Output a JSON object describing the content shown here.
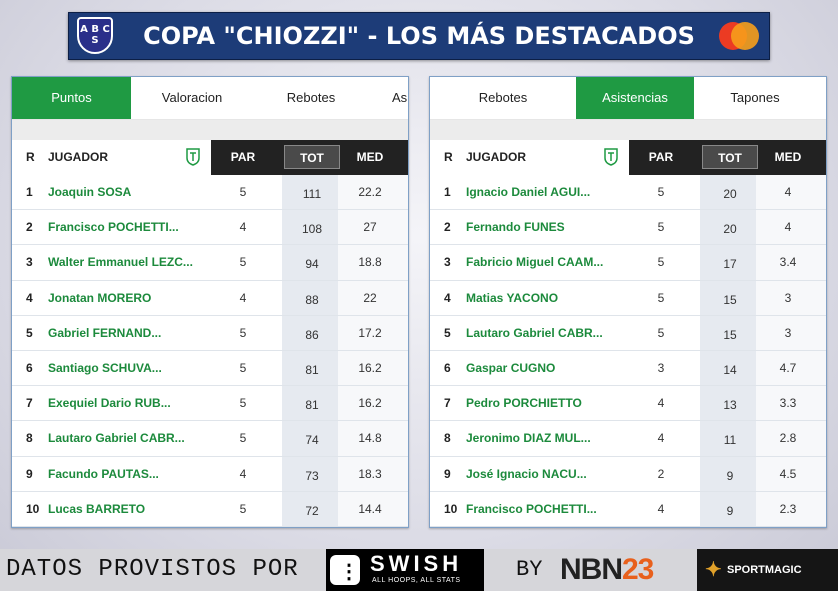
{
  "header": {
    "title": "COPA \"CHIOZZI\" - LOS MÁS DESTACADOS",
    "club_logo_text": "A B C S"
  },
  "left_panel": {
    "tabs": [
      "Puntos",
      "Valoracion",
      "Rebotes",
      "As"
    ],
    "active_tab": 0,
    "columns": {
      "rank": "R",
      "player": "JUGADOR",
      "par": "PAR",
      "tot": "TOT",
      "med": "MED"
    },
    "rows": [
      {
        "r": "1",
        "name": "Joaquin SOSA",
        "par": "5",
        "tot": "111",
        "med": "22.2"
      },
      {
        "r": "2",
        "name": "Francisco POCHETTI...",
        "par": "4",
        "tot": "108",
        "med": "27"
      },
      {
        "r": "3",
        "name": "Walter Emmanuel LEZC...",
        "par": "5",
        "tot": "94",
        "med": "18.8"
      },
      {
        "r": "4",
        "name": "Jonatan MORERO",
        "par": "4",
        "tot": "88",
        "med": "22"
      },
      {
        "r": "5",
        "name": "Gabriel FERNAND...",
        "par": "5",
        "tot": "86",
        "med": "17.2"
      },
      {
        "r": "6",
        "name": "Santiago SCHUVA...",
        "par": "5",
        "tot": "81",
        "med": "16.2"
      },
      {
        "r": "7",
        "name": "Exequiel Dario RUB...",
        "par": "5",
        "tot": "81",
        "med": "16.2"
      },
      {
        "r": "8",
        "name": "Lautaro Gabriel CABR...",
        "par": "5",
        "tot": "74",
        "med": "14.8"
      },
      {
        "r": "9",
        "name": "Facundo PAUTAS...",
        "par": "4",
        "tot": "73",
        "med": "18.3"
      },
      {
        "r": "10",
        "name": "Lucas BARRETO",
        "par": "5",
        "tot": "72",
        "med": "14.4"
      }
    ]
  },
  "right_panel": {
    "tabs": [
      "Rebotes",
      "Asistencias",
      "Tapones"
    ],
    "active_tab": 1,
    "columns": {
      "rank": "R",
      "player": "JUGADOR",
      "par": "PAR",
      "tot": "TOT",
      "med": "MED"
    },
    "rows": [
      {
        "r": "1",
        "name": "Ignacio Daniel AGUI...",
        "par": "5",
        "tot": "20",
        "med": "4"
      },
      {
        "r": "2",
        "name": "Fernando FUNES",
        "par": "5",
        "tot": "20",
        "med": "4"
      },
      {
        "r": "3",
        "name": "Fabricio Miguel CAAM...",
        "par": "5",
        "tot": "17",
        "med": "3.4"
      },
      {
        "r": "4",
        "name": "Matias YACONO",
        "par": "5",
        "tot": "15",
        "med": "3"
      },
      {
        "r": "5",
        "name": "Lautaro Gabriel CABR...",
        "par": "5",
        "tot": "15",
        "med": "3"
      },
      {
        "r": "6",
        "name": "Gaspar CUGNO",
        "par": "3",
        "tot": "14",
        "med": "4.7"
      },
      {
        "r": "7",
        "name": "Pedro PORCHIETTO",
        "par": "4",
        "tot": "13",
        "med": "3.3"
      },
      {
        "r": "8",
        "name": "Jeronimo DIAZ MUL...",
        "par": "4",
        "tot": "11",
        "med": "2.8"
      },
      {
        "r": "9",
        "name": "José Ignacio NACU...",
        "par": "2",
        "tot": "9",
        "med": "4.5"
      },
      {
        "r": "10",
        "name": "Francisco POCHETTI...",
        "par": "4",
        "tot": "9",
        "med": "2.3"
      }
    ]
  },
  "footer": {
    "credit_text": "DATOS PROVISTOS POR",
    "swish_name": "SWISH",
    "swish_tagline": "ALL HOOPS, ALL STATS",
    "by_text": "BY",
    "nbn_prefix": "NBN",
    "nbn_suffix": "23",
    "sportmagic": "SPORTMAGIC"
  },
  "colors": {
    "accent_green": "#1f9a43",
    "title_bar": "#1d3c78",
    "player_name": "#1c8a3c"
  }
}
